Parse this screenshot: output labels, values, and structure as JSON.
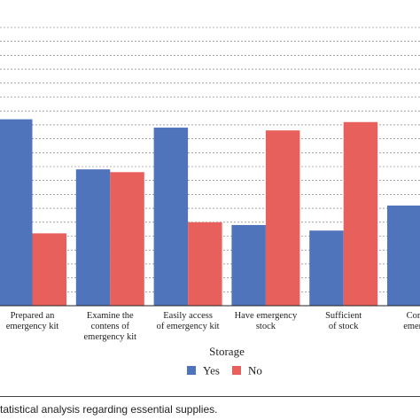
{
  "chart_data": {
    "type": "bar",
    "categories": [
      [
        "Prepared an",
        "emergency kit"
      ],
      [
        "Examine the",
        "contens of",
        "emergency kit"
      ],
      [
        "Easily access",
        "of emergency kit"
      ],
      [
        "Have emergency",
        "stock"
      ],
      [
        "Sufficient",
        "of stock"
      ],
      [
        "Commu",
        "emergenc"
      ]
    ],
    "series": [
      {
        "name": "Yes",
        "color": "#4f74bc",
        "values": [
          67,
          49,
          64,
          29,
          27,
          36
        ]
      },
      {
        "name": "No",
        "color": "#e8605b",
        "values": [
          26,
          48,
          30,
          63,
          66,
          null
        ]
      }
    ],
    "xlabel": "Storage",
    "ylim": [
      0,
      100
    ],
    "grid": true,
    "legend": "bottom-center"
  },
  "caption": "tatistical analysis regarding essential supplies."
}
